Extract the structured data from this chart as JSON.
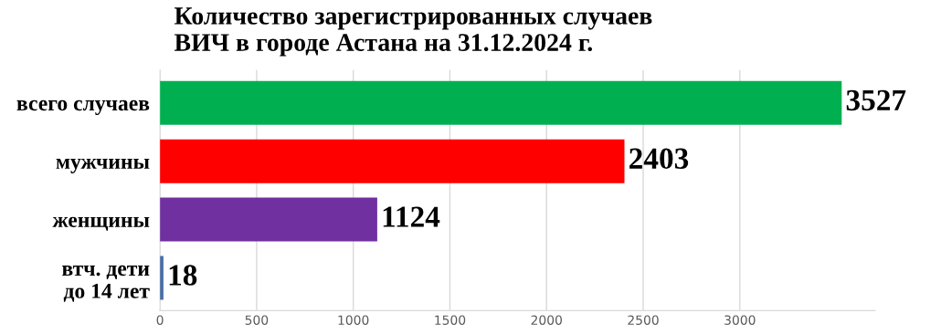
{
  "chart_data": {
    "type": "bar",
    "orientation": "horizontal",
    "title": "Количество зарегистрированных случаев\nВИЧ в городе Астана на 31.12.2024 г.",
    "categories": [
      "всего случаев",
      "мужчины",
      "женщины",
      "втч. дети\nдо 14 лет"
    ],
    "values": [
      3527,
      2403,
      1124,
      18
    ],
    "colors": [
      "#00b050",
      "#ff0000",
      "#7030a0",
      "#4a6fa5"
    ],
    "xlim": [
      0,
      3700
    ],
    "xticks": [
      0,
      500,
      1000,
      1500,
      2000,
      2500,
      3000
    ],
    "grid": "x",
    "data_labels": true
  }
}
